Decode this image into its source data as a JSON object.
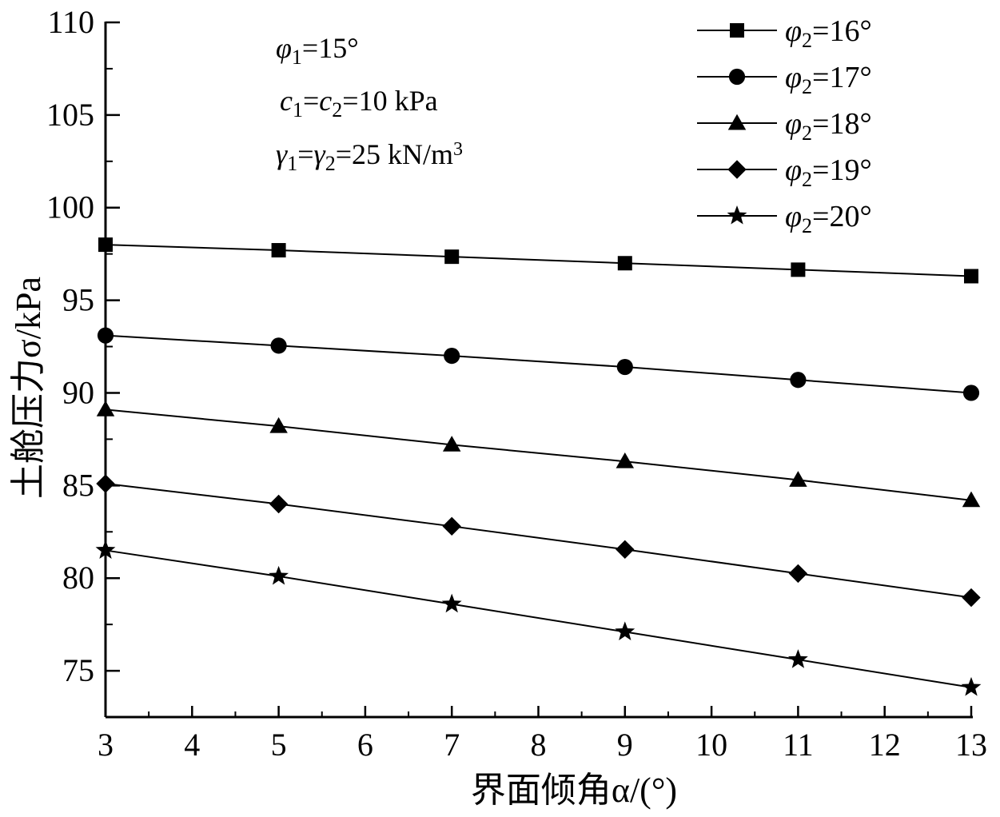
{
  "chart_data": {
    "type": "line",
    "title": "",
    "xlabel": "界面倾角α/(°)",
    "ylabel": "土舱压力σ/kPa",
    "x": [
      3,
      5,
      7,
      9,
      11,
      13
    ],
    "xlim": [
      3,
      13
    ],
    "ylim": [
      72.5,
      110
    ],
    "x_major_ticks": [
      3,
      4,
      5,
      6,
      7,
      8,
      9,
      10,
      11,
      12,
      13
    ],
    "y_major_ticks": [
      75,
      80,
      85,
      90,
      95,
      100,
      105,
      110
    ],
    "grid": false,
    "legend_position": "top-right",
    "series": [
      {
        "name": "φ2=16°",
        "marker": "square",
        "values": [
          98.0,
          97.7,
          97.35,
          97.0,
          96.65,
          96.3
        ]
      },
      {
        "name": "φ2=17°",
        "marker": "circle",
        "values": [
          93.1,
          92.55,
          92.0,
          91.4,
          90.7,
          90.0
        ]
      },
      {
        "name": "φ2=18°",
        "marker": "triangle",
        "values": [
          89.1,
          88.2,
          87.2,
          86.3,
          85.3,
          84.2
        ]
      },
      {
        "name": "φ2=19°",
        "marker": "diamond",
        "values": [
          85.1,
          84.0,
          82.8,
          81.55,
          80.25,
          78.95
        ]
      },
      {
        "name": "φ2=20°",
        "marker": "star",
        "values": [
          81.5,
          80.1,
          78.6,
          77.1,
          75.6,
          74.1
        ]
      }
    ],
    "annotations": {
      "phi1": {
        "sym": "φ",
        "sub": "1",
        "rest": "=15°"
      },
      "c": {
        "sym1": "c",
        "sub1": "1",
        "eq": "=",
        "sym2": "c",
        "sub2": "2",
        "rest": "=10 kPa"
      },
      "gamma": {
        "sym1": "γ",
        "sub1": "1",
        "eq": "=",
        "sym2": "γ",
        "sub2": "2",
        "rest": "=25 kN/m",
        "sup": "3"
      }
    },
    "colors": {
      "line": "#000000",
      "marker": "#000000",
      "background": "#ffffff"
    }
  }
}
